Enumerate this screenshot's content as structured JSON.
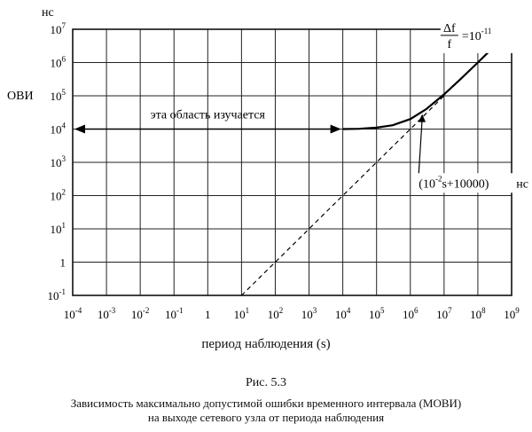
{
  "chart_data": {
    "type": "line",
    "x_unit": "",
    "y_unit_label": "нс",
    "ylabel": "ОВИ",
    "xlabel": "период наблюдения (s)",
    "x_scale": "log",
    "y_scale": "log",
    "x_ticks": [
      {
        "base": "10",
        "exp": "-4"
      },
      {
        "base": "10",
        "exp": "-3"
      },
      {
        "base": "10",
        "exp": "-2"
      },
      {
        "base": "10",
        "exp": "-1"
      },
      {
        "base": "1",
        "exp": ""
      },
      {
        "base": "10",
        "exp": "1"
      },
      {
        "base": "10",
        "exp": "2"
      },
      {
        "base": "10",
        "exp": "3"
      },
      {
        "base": "10",
        "exp": "4"
      },
      {
        "base": "10",
        "exp": "5"
      },
      {
        "base": "10",
        "exp": "6"
      },
      {
        "base": "10",
        "exp": "7"
      },
      {
        "base": "10",
        "exp": "8"
      },
      {
        "base": "10",
        "exp": "9"
      }
    ],
    "y_ticks": [
      {
        "base": "10",
        "exp": "7"
      },
      {
        "base": "10",
        "exp": "6"
      },
      {
        "base": "10",
        "exp": "5"
      },
      {
        "base": "10",
        "exp": "4"
      },
      {
        "base": "10",
        "exp": "3"
      },
      {
        "base": "10",
        "exp": "2"
      },
      {
        "base": "10",
        "exp": "1"
      },
      {
        "base": "1",
        "exp": ""
      },
      {
        "base": "10",
        "exp": "-1"
      }
    ],
    "xlim_log10": [
      -4,
      9
    ],
    "ylim_log10": [
      -1,
      7
    ],
    "grid": true,
    "series": [
      {
        "style": "solid",
        "x": [
          10000,
          30000,
          100000,
          300000,
          1000000,
          3000000,
          10000000,
          30000000,
          100000000,
          200000000
        ],
        "y": [
          10000,
          10200,
          11000,
          13000,
          20000,
          40000,
          110000,
          310000,
          1000000,
          2000000
        ]
      },
      {
        "style": "dashed",
        "x": [
          10,
          100,
          1000,
          10000,
          100000,
          1000000,
          10000000
        ],
        "y": [
          0.1,
          1,
          10,
          100,
          1000,
          10000,
          100000
        ]
      }
    ],
    "annotations": {
      "region": "эта область изучается",
      "formula_main": "(10",
      "formula_sup": "-2",
      "formula_rest": "s+10000)",
      "formula_unit": "нс",
      "stability_num": "Δf",
      "stability_den": "f",
      "stability_eq": "=10",
      "stability_exp": "-11"
    }
  },
  "figure": {
    "number": "Рис. 5.3",
    "caption_line1": "Зависимость максимально допустимой ошибки временного интервала (МОВИ)",
    "caption_line2": "на выходе сетевого узла от периода наблюдения"
  }
}
